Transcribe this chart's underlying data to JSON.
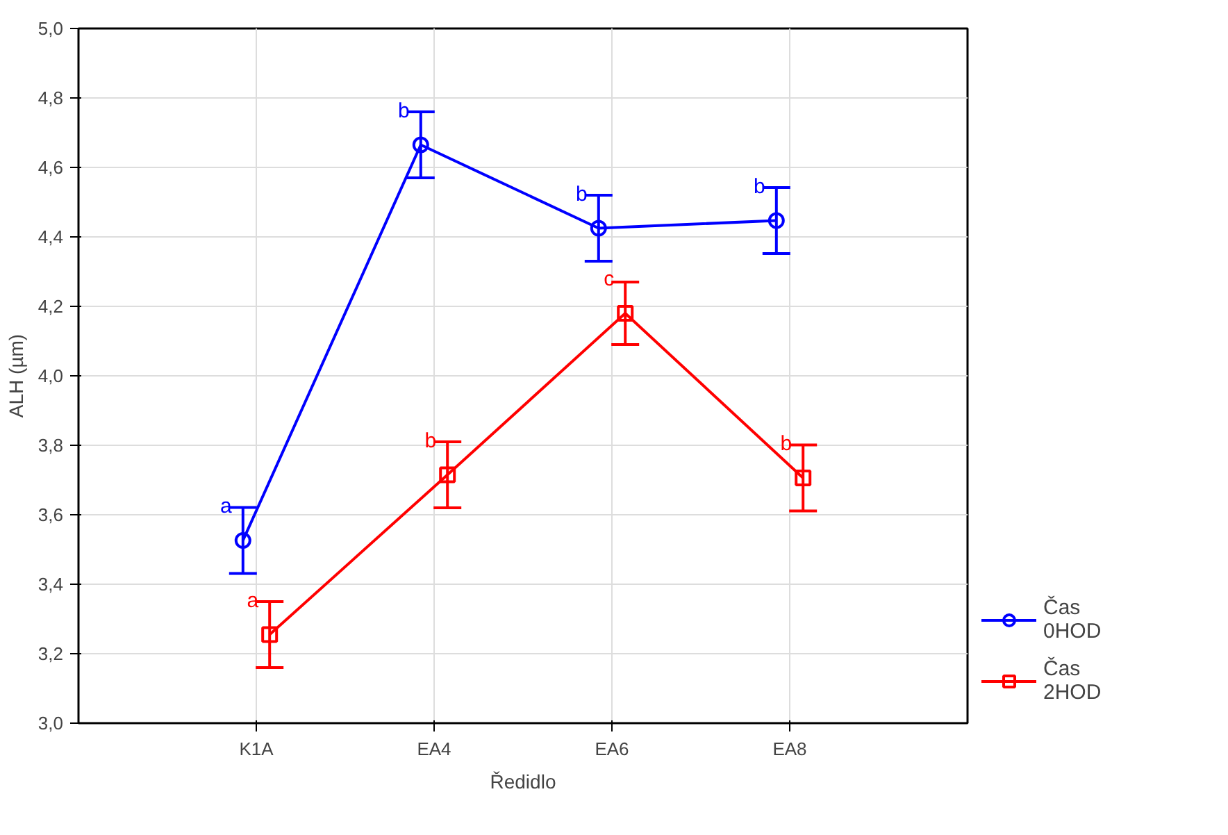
{
  "chart_data": {
    "type": "line",
    "xlabel": "Ředidlo",
    "ylabel": "ALH (µm)",
    "categories": [
      "K1A",
      "EA4",
      "EA6",
      "EA8"
    ],
    "series": [
      {
        "name": "Čas 0HOD",
        "color": "#0000ff",
        "marker": "circle",
        "values": [
          3.526,
          4.665,
          4.425,
          4.447
        ],
        "errors": [
          0.095,
          0.095,
          0.095,
          0.095
        ],
        "value_labels": [
          "a",
          "b",
          "b",
          "b"
        ]
      },
      {
        "name": "Čas 2HOD",
        "color": "#ff0000",
        "marker": "square",
        "values": [
          3.255,
          3.715,
          4.18,
          3.706
        ],
        "errors": [
          0.095,
          0.095,
          0.09,
          0.095
        ],
        "value_labels": [
          "a",
          "b",
          "c",
          "b"
        ]
      }
    ],
    "ylim": [
      3.0,
      5.0
    ],
    "yticks": [
      {
        "value": 3.0,
        "label": "3,0"
      },
      {
        "value": 3.2,
        "label": "3,2"
      },
      {
        "value": 3.4,
        "label": "3,4"
      },
      {
        "value": 3.6,
        "label": "3,6"
      },
      {
        "value": 3.8,
        "label": "3,8"
      },
      {
        "value": 4.0,
        "label": "4,0"
      },
      {
        "value": 4.2,
        "label": "4,2"
      },
      {
        "value": 4.4,
        "label": "4,4"
      },
      {
        "value": 4.6,
        "label": "4,6"
      },
      {
        "value": 4.8,
        "label": "4,8"
      },
      {
        "value": 5.0,
        "label": "5,0"
      }
    ],
    "grid": true,
    "legend": "bottom right",
    "line_style": "solid"
  }
}
